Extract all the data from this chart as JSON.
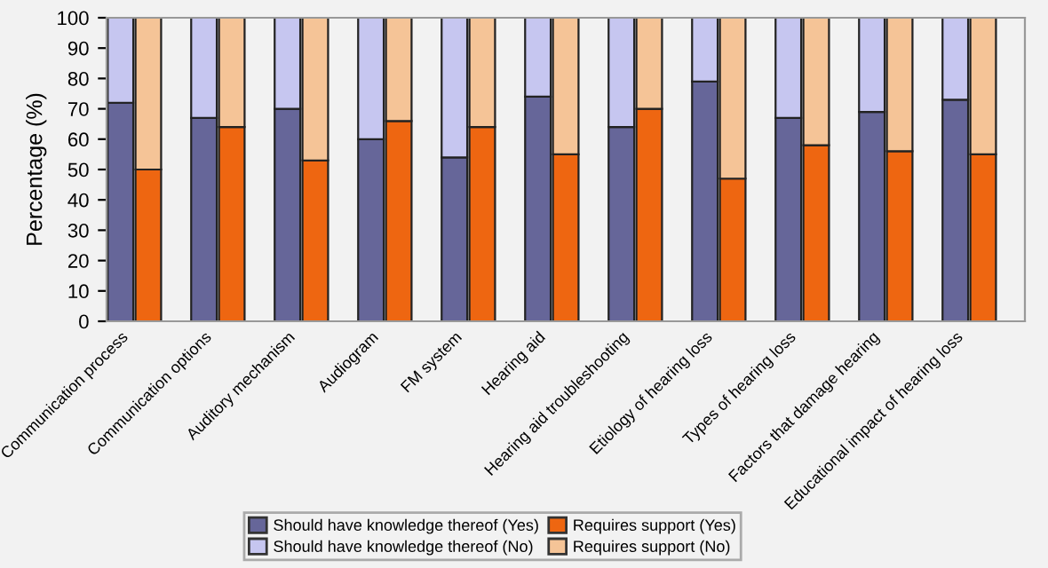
{
  "chart_data": {
    "type": "bar",
    "stacked": true,
    "ylabel": "Percentage (%)",
    "categories": [
      "Communication process",
      null,
      null,
      "Communication options",
      null,
      null,
      "Auditory mechanism",
      null,
      null,
      "Audiogram",
      null,
      null,
      "FM system",
      null,
      null,
      "Hearing aid",
      null,
      null,
      "Hearing aid troubleshooting",
      null,
      null,
      "Etiology of hearing loss",
      null,
      null,
      "Types of hearing loss",
      null,
      null,
      "Factors that damage hearing",
      null,
      null,
      "Educational impact of hearing loss",
      null,
      null
    ],
    "series": [
      {
        "name": "Should have knowledge thereof (Yes)",
        "color": "#666699",
        "values": [
          72,
          null,
          null,
          67,
          null,
          null,
          70,
          null,
          null,
          60,
          null,
          null,
          54,
          null,
          null,
          74,
          null,
          null,
          64,
          null,
          null,
          79,
          null,
          null,
          67,
          null,
          null,
          69,
          null,
          null,
          73,
          null,
          null
        ]
      },
      {
        "name": "Should have knowledge thereof (No)",
        "color": "#c6c6f0",
        "values": [
          28,
          null,
          null,
          33,
          null,
          null,
          30,
          null,
          null,
          40,
          null,
          null,
          46,
          null,
          null,
          26,
          null,
          null,
          36,
          null,
          null,
          21,
          null,
          null,
          33,
          null,
          null,
          31,
          null,
          null,
          27,
          null,
          null
        ]
      },
      {
        "name": "Requires support (Yes)",
        "color": "#ee6611",
        "values": [
          null,
          50,
          null,
          null,
          64,
          null,
          null,
          53,
          null,
          null,
          66,
          null,
          null,
          64,
          null,
          null,
          55,
          null,
          null,
          70,
          null,
          null,
          47,
          null,
          null,
          58,
          null,
          null,
          56,
          null,
          null,
          55,
          null
        ]
      },
      {
        "name": "Requires support (No)",
        "color": "#f5c497",
        "values": [
          null,
          50,
          null,
          null,
          36,
          null,
          null,
          47,
          null,
          null,
          34,
          null,
          null,
          36,
          null,
          null,
          45,
          null,
          null,
          30,
          null,
          null,
          53,
          null,
          null,
          42,
          null,
          null,
          44,
          null,
          null,
          45,
          null
        ]
      }
    ],
    "ylim": [
      0,
      100
    ],
    "yticks": [
      0,
      10,
      20,
      30,
      40,
      50,
      60,
      70,
      80,
      90,
      100
    ],
    "legend": "bottom"
  }
}
